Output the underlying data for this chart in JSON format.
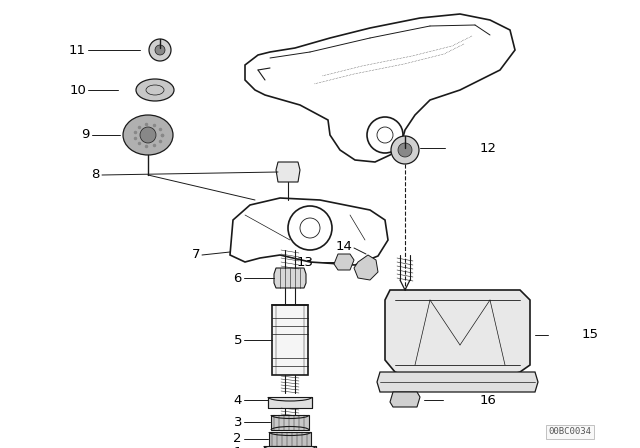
{
  "background_color": "#ffffff",
  "line_color": "#1a1a1a",
  "text_color": "#000000",
  "diagram_id": "00BC0034",
  "fig_w": 6.4,
  "fig_h": 4.48,
  "dpi": 100
}
